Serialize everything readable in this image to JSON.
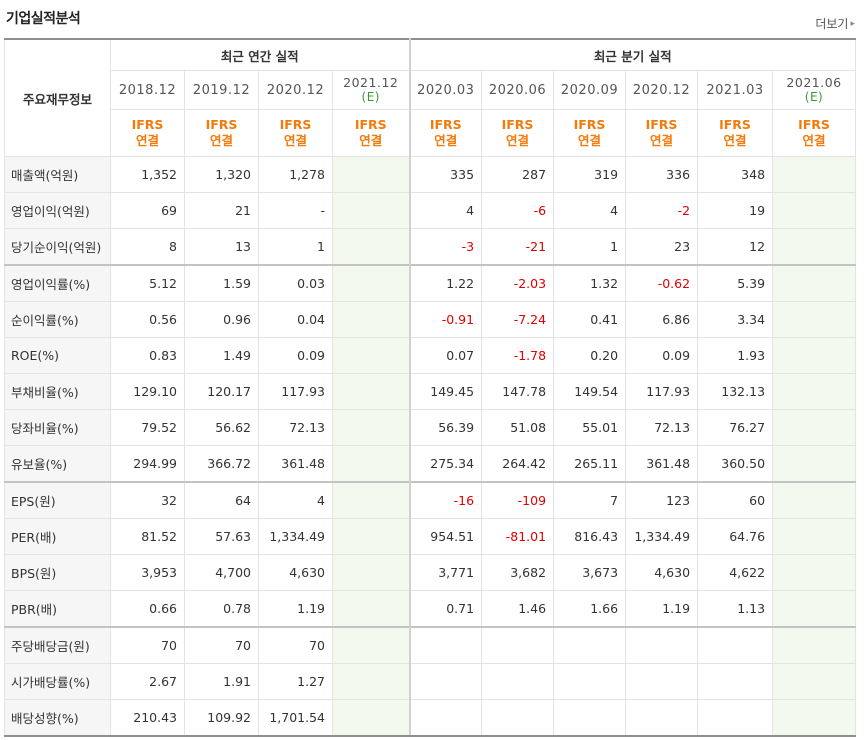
{
  "title": "기업실적분석",
  "more_label": "더보기",
  "header": {
    "row_label": "주요재무정보",
    "annual_group": "최근 연간 실적",
    "quarter_group": "최근 분기 실적",
    "annual_years": [
      "2018.12",
      "2019.12",
      "2020.12",
      "2021.12"
    ],
    "annual_est_suffix": "(E)",
    "quarter_years": [
      "2020.03",
      "2020.06",
      "2020.09",
      "2020.12",
      "2021.03",
      "2021.06"
    ],
    "quarter_est_suffix": "(E)",
    "ifrs_line1": "IFRS",
    "ifrs_line2": "연결"
  },
  "rows": [
    {
      "label": "매출액(억원)",
      "values": [
        "1,352",
        "1,320",
        "1,278",
        "",
        "335",
        "287",
        "319",
        "336",
        "348",
        ""
      ]
    },
    {
      "label": "영업이익(억원)",
      "values": [
        "69",
        "21",
        "-",
        "",
        "4",
        "-6",
        "4",
        "-2",
        "19",
        ""
      ]
    },
    {
      "label": "당기순이익(억원)",
      "values": [
        "8",
        "13",
        "1",
        "",
        "-3",
        "-21",
        "1",
        "23",
        "12",
        ""
      ]
    },
    {
      "label": "영업이익률(%)",
      "values": [
        "5.12",
        "1.59",
        "0.03",
        "",
        "1.22",
        "-2.03",
        "1.32",
        "-0.62",
        "5.39",
        ""
      ]
    },
    {
      "label": "순이익률(%)",
      "values": [
        "0.56",
        "0.96",
        "0.04",
        "",
        "-0.91",
        "-7.24",
        "0.41",
        "6.86",
        "3.34",
        ""
      ]
    },
    {
      "label": "ROE(%)",
      "values": [
        "0.83",
        "1.49",
        "0.09",
        "",
        "0.07",
        "-1.78",
        "0.20",
        "0.09",
        "1.93",
        ""
      ]
    },
    {
      "label": "부채비율(%)",
      "values": [
        "129.10",
        "120.17",
        "117.93",
        "",
        "149.45",
        "147.78",
        "149.54",
        "117.93",
        "132.13",
        ""
      ]
    },
    {
      "label": "당좌비율(%)",
      "values": [
        "79.52",
        "56.62",
        "72.13",
        "",
        "56.39",
        "51.08",
        "55.01",
        "72.13",
        "76.27",
        ""
      ]
    },
    {
      "label": "유보율(%)",
      "values": [
        "294.99",
        "366.72",
        "361.48",
        "",
        "275.34",
        "264.42",
        "265.11",
        "361.48",
        "360.50",
        ""
      ]
    },
    {
      "label": "EPS(원)",
      "values": [
        "32",
        "64",
        "4",
        "",
        "-16",
        "-109",
        "7",
        "123",
        "60",
        ""
      ]
    },
    {
      "label": "PER(배)",
      "values": [
        "81.52",
        "57.63",
        "1,334.49",
        "",
        "954.51",
        "-81.01",
        "816.43",
        "1,334.49",
        "64.76",
        ""
      ]
    },
    {
      "label": "BPS(원)",
      "values": [
        "3,953",
        "4,700",
        "4,630",
        "",
        "3,771",
        "3,682",
        "3,673",
        "4,630",
        "4,622",
        ""
      ]
    },
    {
      "label": "PBR(배)",
      "values": [
        "0.66",
        "0.78",
        "1.19",
        "",
        "0.71",
        "1.46",
        "1.66",
        "1.19",
        "1.13",
        ""
      ]
    },
    {
      "label": "주당배당금(원)",
      "values": [
        "70",
        "70",
        "70",
        "",
        "",
        "",
        "",
        "",
        "",
        ""
      ]
    },
    {
      "label": "시가배당률(%)",
      "values": [
        "2.67",
        "1.91",
        "1.27",
        "",
        "",
        "",
        "",
        "",
        "",
        ""
      ]
    },
    {
      "label": "배당성향(%)",
      "values": [
        "210.43",
        "109.92",
        "1,701.54",
        "",
        "",
        "",
        "",
        "",
        "",
        ""
      ]
    }
  ],
  "colors": {
    "negative": "#e00000",
    "ifrs": "#f27b0c",
    "estimate_bg": "#f3f9ef"
  }
}
